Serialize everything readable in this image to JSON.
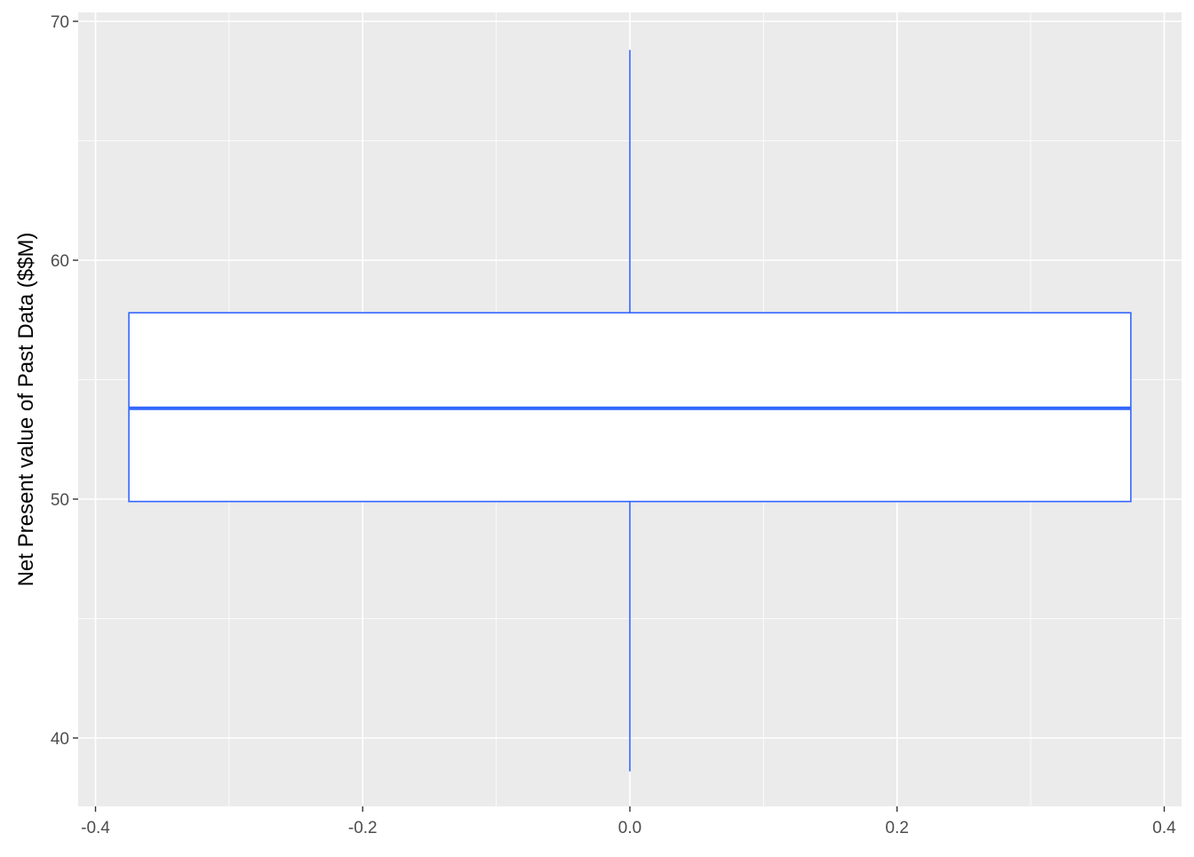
{
  "chart_data": {
    "type": "boxplot",
    "title": "",
    "xlabel": "",
    "ylabel": "Net Present value of Past Data ($$M)",
    "xlim": [
      -0.42,
      0.42
    ],
    "ylim": [
      37.3,
      70.4
    ],
    "x_ticks": [
      -0.4,
      -0.2,
      0.0,
      0.2,
      0.4
    ],
    "x_tick_labels": [
      "-0.4",
      "-0.2",
      "0.0",
      "0.2",
      "0.4"
    ],
    "y_ticks": [
      40,
      50,
      60,
      70
    ],
    "y_tick_labels": [
      "40",
      "50",
      "60",
      "70"
    ],
    "grid": true,
    "box": {
      "x_center": 0.0,
      "x_min": -0.375,
      "x_max": 0.375,
      "whisker_low": 38.6,
      "q1": 49.9,
      "median": 53.8,
      "q3": 57.8,
      "whisker_high": 68.8
    },
    "colors": {
      "box_line": "#3366FF",
      "box_fill": "#FFFFFF",
      "panel": "#EBEBEB",
      "grid": "#FFFFFF"
    }
  }
}
